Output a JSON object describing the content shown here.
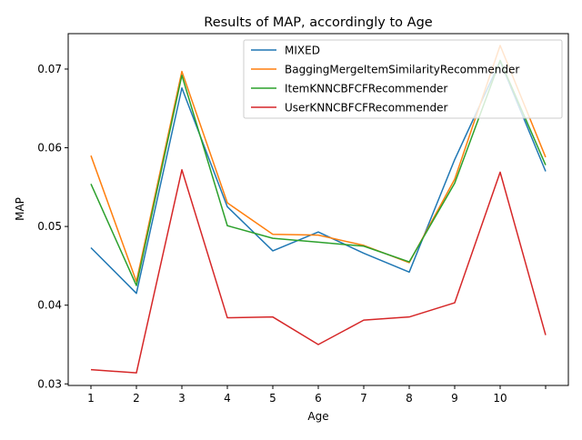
{
  "chart_data": {
    "type": "line",
    "title": "Results of MAP, accordingly to Age",
    "xlabel": "Age",
    "ylabel": "MAP",
    "x": [
      1,
      2,
      3,
      4,
      5,
      6,
      7,
      8,
      9,
      10,
      11
    ],
    "xticks": [
      "1",
      "2",
      "3",
      "4",
      "5",
      "6",
      "7",
      "8",
      "9",
      "10",
      ""
    ],
    "yticks": [
      "0.03",
      "0.04",
      "0.05",
      "0.06",
      "0.07"
    ],
    "xlim": [
      0.5,
      11.5
    ],
    "ylim": [
      0.0298,
      0.0745
    ],
    "grid": false,
    "legend_position": "upper right",
    "series": [
      {
        "name": "MIXED",
        "color": "#1f77b4",
        "values": [
          0.0473,
          0.0415,
          0.0676,
          0.0525,
          0.0469,
          0.0493,
          0.0466,
          0.0442,
          0.0585,
          0.071,
          0.057
        ]
      },
      {
        "name": "BaggingMergeItemSimilarityRecommender",
        "color": "#ff7f0e",
        "values": [
          0.059,
          0.043,
          0.0697,
          0.053,
          0.049,
          0.0489,
          0.0476,
          0.0454,
          0.056,
          0.073,
          0.0588
        ]
      },
      {
        "name": "ItemKNNCBFCFRecommender",
        "color": "#2ca02c",
        "values": [
          0.0554,
          0.0425,
          0.0692,
          0.0501,
          0.0485,
          0.048,
          0.0475,
          0.0455,
          0.0555,
          0.0711,
          0.0578
        ]
      },
      {
        "name": "UserKNNCBFCFRecommender",
        "color": "#d62728",
        "values": [
          0.0318,
          0.0314,
          0.0572,
          0.0384,
          0.0385,
          0.035,
          0.0381,
          0.0385,
          0.0403,
          0.0569,
          0.0362
        ]
      }
    ]
  }
}
